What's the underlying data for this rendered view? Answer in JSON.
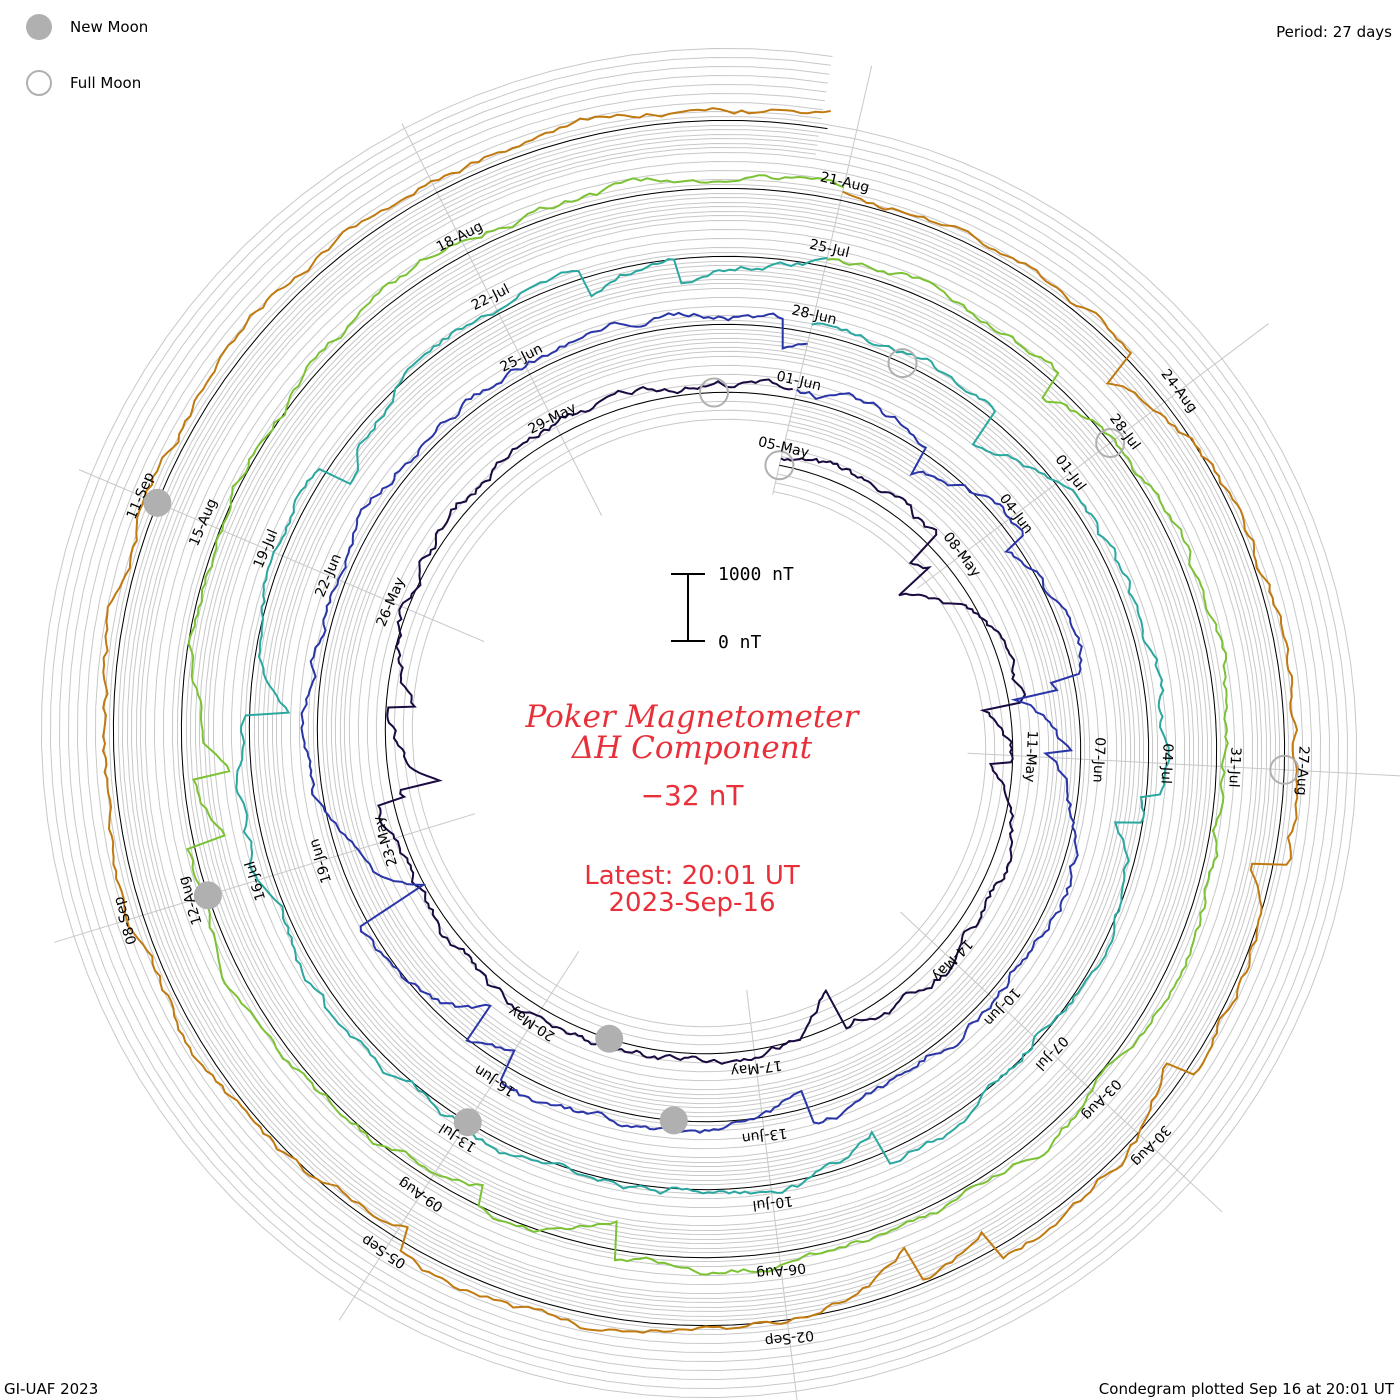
{
  "header": {
    "period_label": "Period: 27 days"
  },
  "legend": {
    "new_moon": {
      "label": "New Moon",
      "color": "#b0b0b0"
    },
    "full_moon": {
      "label": "Full Moon",
      "color": "#b0b0b0"
    }
  },
  "footer": {
    "credit": "GI-UAF 2023",
    "plotted": "Condegram plotted Sep 16 at 20:01 UT"
  },
  "center": {
    "title_line1": "Poker Magnetometer",
    "title_line2": "ΔH Component",
    "current_value": "−32 nT",
    "latest_line1": "Latest: 20:01 UT",
    "latest_line2": "2023-Sep-16",
    "scale_top": "1000 nT",
    "scale_bottom": "0 nT"
  },
  "chart_data": {
    "type": "line",
    "title": "Poker Magnetometer ΔH Component",
    "period_days": 27,
    "start_date": "2023-05-05",
    "end": "2023-09-16 20:01 UT",
    "current_value_nT": -32,
    "scale_bar_nT": [
      0,
      1000
    ],
    "rotations": [
      {
        "start": "05-May",
        "labels": [
          "05-May",
          "08-May",
          "11-May",
          "14-May",
          "17-May",
          "20-May",
          "23-May",
          "26-May",
          "29-May"
        ],
        "color": "#1a0a40"
      },
      {
        "start": "01-Jun",
        "labels": [
          "01-Jun",
          "04-Jun",
          "07-Jun",
          "10-Jun",
          "13-Jun",
          "16-Jun",
          "19-Jun",
          "22-Jun",
          "25-Jun"
        ],
        "color": "#2a35a8"
      },
      {
        "start": "28-Jun",
        "labels": [
          "28-Jun",
          "01-Jul",
          "04-Jul",
          "07-Jul",
          "10-Jul",
          "13-Jul",
          "16-Jul",
          "19-Jul",
          "22-Jul"
        ],
        "color": "#2aa8a0"
      },
      {
        "start": "25-Jul",
        "labels": [
          "25-Jul",
          "28-Jul",
          "31-Jul",
          "03-Aug",
          "06-Aug",
          "09-Aug",
          "12-Aug",
          "15-Aug",
          "18-Aug"
        ],
        "color": "#7cc235"
      },
      {
        "start": "21-Aug",
        "labels": [
          "21-Aug",
          "24-Aug",
          "27-Aug",
          "30-Aug",
          "02-Sep",
          "05-Sep",
          "08-Sep",
          "11-Sep"
        ],
        "color": "#c07a10"
      }
    ],
    "new_moon_dates": [
      "19-May",
      "18-Jun",
      "17-Jul",
      "16-Aug",
      "15-Sep"
    ],
    "full_moon_dates": [
      "05-May",
      "04-Jun",
      "03-Jul",
      "01-Aug",
      "31-Aug"
    ]
  }
}
